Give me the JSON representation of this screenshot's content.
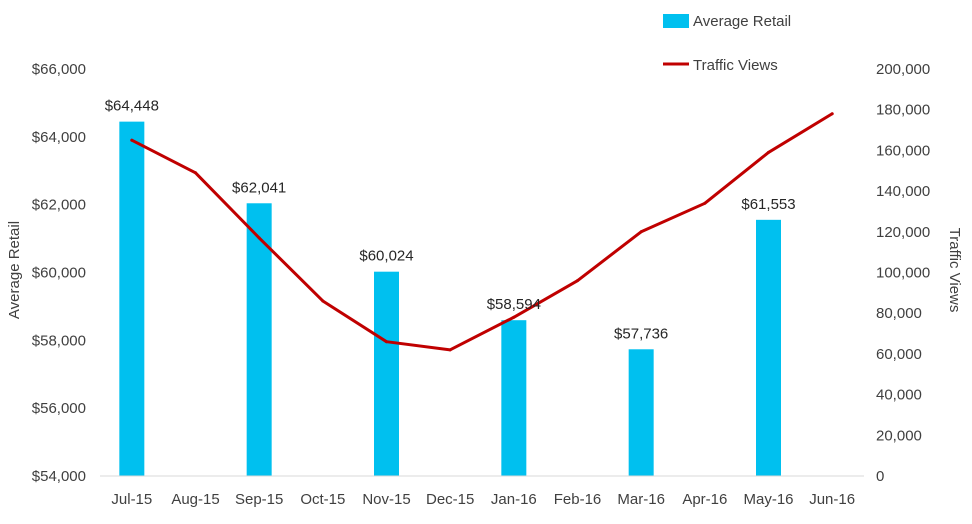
{
  "chart_data": {
    "type": "bar",
    "categories": [
      "Jul-15",
      "Aug-15",
      "Sep-15",
      "Oct-15",
      "Nov-15",
      "Dec-15",
      "Jan-16",
      "Feb-16",
      "Mar-16",
      "Apr-16",
      "May-16",
      "Jun-16"
    ],
    "series": [
      {
        "name": "Average Retail",
        "type": "bar",
        "axis": "left",
        "color": "#00c0ef",
        "values": [
          64448,
          null,
          62041,
          null,
          60024,
          null,
          58594,
          null,
          57736,
          null,
          61553,
          null
        ],
        "labels": [
          "$64,448",
          "",
          "$62,041",
          "",
          "$60,024",
          "",
          "$58,594",
          "",
          "$57,736",
          "",
          "$61,553",
          ""
        ]
      },
      {
        "name": "Traffic Views",
        "type": "line",
        "axis": "right",
        "color": "#c00000",
        "values": [
          165000,
          149000,
          117000,
          86000,
          66000,
          62000,
          78000,
          96000,
          120000,
          134000,
          159000,
          178000
        ]
      }
    ],
    "ylabel": "Average Retail",
    "y2label": "Traffic Views",
    "ylim": [
      54000,
      66000
    ],
    "y2lim": [
      0,
      200000
    ],
    "yticks": [
      "$54,000",
      "$56,000",
      "$58,000",
      "$60,000",
      "$62,000",
      "$64,000",
      "$66,000"
    ],
    "y2ticks": [
      "0",
      "20,000",
      "40,000",
      "60,000",
      "80,000",
      "100,000",
      "120,000",
      "140,000",
      "160,000",
      "180,000",
      "200,000"
    ],
    "grid": false,
    "legend_position": "top-right"
  }
}
